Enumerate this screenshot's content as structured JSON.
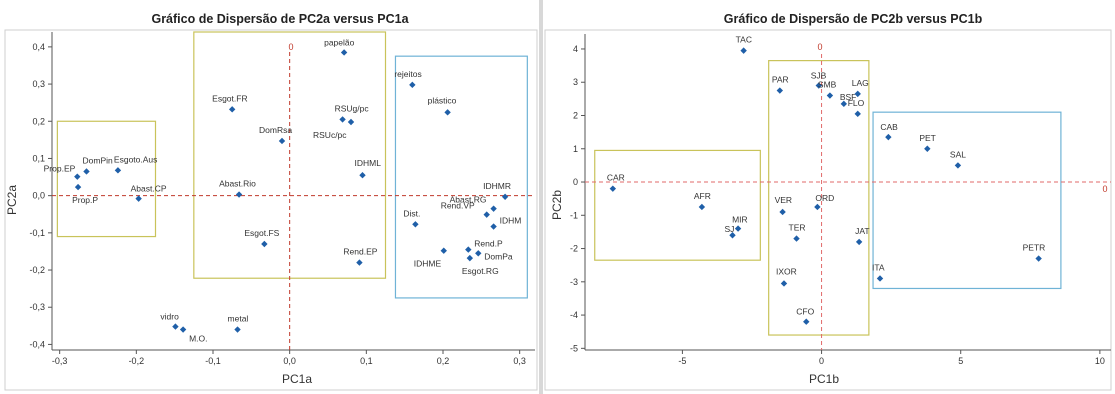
{
  "chart_data": [
    {
      "type": "scatter",
      "title": "Gráfico de Dispersão de PC2a versus PC1a",
      "xlabel": "PC1a",
      "ylabel": "PC2a",
      "xlim": [
        -0.31,
        0.32
      ],
      "ylim": [
        -0.415,
        0.44
      ],
      "xticks": [
        "-0,3",
        "-0,2",
        "-0,1",
        "0,0",
        "0,1",
        "0,2",
        "0,3"
      ],
      "xtick_values": [
        -0.3,
        -0.2,
        -0.1,
        0.0,
        0.1,
        0.2,
        0.3
      ],
      "yticks": [
        "0,4",
        "0,3",
        "0,2",
        "0,1",
        "0,0",
        "-0,1",
        "-0,2",
        "-0,3",
        "-0,4"
      ],
      "ytick_values": [
        0.4,
        0.3,
        0.2,
        0.1,
        0.0,
        -0.1,
        -0.2,
        -0.3,
        -0.4
      ],
      "zero_label": "0",
      "point_color": "#1f5fa8",
      "ref_color": "#c0392b",
      "points": [
        {
          "label": "Prop.EP",
          "x": -0.277,
          "y": 0.051
        },
        {
          "label": "DomPin",
          "x": -0.265,
          "y": 0.065
        },
        {
          "label": "Esgoto.Aus",
          "x": -0.224,
          "y": 0.068
        },
        {
          "label": "Prop.P",
          "x": -0.276,
          "y": 0.023
        },
        {
          "label": "Abast.CP",
          "x": -0.197,
          "y": -0.008
        },
        {
          "label": "Esgot.FR",
          "x": -0.075,
          "y": 0.232
        },
        {
          "label": "DomRsa",
          "x": -0.01,
          "y": 0.147
        },
        {
          "label": "Abast.Rio",
          "x": -0.066,
          "y": 0.003
        },
        {
          "label": "Esgot.FS",
          "x": -0.033,
          "y": -0.13
        },
        {
          "label": "papelão",
          "x": 0.071,
          "y": 0.385
        },
        {
          "label": "RSUg/pc",
          "x": 0.069,
          "y": 0.205
        },
        {
          "label": "RSUc/pc",
          "x": 0.08,
          "y": 0.198
        },
        {
          "label": "IDHML",
          "x": 0.095,
          "y": 0.055
        },
        {
          "label": "Rend.EP",
          "x": 0.091,
          "y": -0.18
        },
        {
          "label": "vidro",
          "x": -0.149,
          "y": -0.352
        },
        {
          "label": "M.O.",
          "x": -0.139,
          "y": -0.36
        },
        {
          "label": "metal",
          "x": -0.068,
          "y": -0.36
        },
        {
          "label": "rejeitos",
          "x": 0.16,
          "y": 0.298
        },
        {
          "label": "plástico",
          "x": 0.206,
          "y": 0.224
        },
        {
          "label": "IDHMR",
          "x": 0.281,
          "y": -0.003
        },
        {
          "label": "Abast.RG",
          "x": 0.266,
          "y": -0.035
        },
        {
          "label": "Rend.VP",
          "x": 0.257,
          "y": -0.051
        },
        {
          "label": "IDHM",
          "x": 0.266,
          "y": -0.083
        },
        {
          "label": "Dist.",
          "x": 0.164,
          "y": -0.077
        },
        {
          "label": "IDHME",
          "x": 0.201,
          "y": -0.148
        },
        {
          "label": "Rend.P",
          "x": 0.233,
          "y": -0.145
        },
        {
          "label": "DomPa",
          "x": 0.246,
          "y": -0.155
        },
        {
          "label": "Esgot.RG",
          "x": 0.235,
          "y": -0.168
        }
      ],
      "boxes": [
        {
          "x0": -0.303,
          "x1": -0.175,
          "y0": -0.11,
          "y1": 0.2,
          "color": "#c9c35a"
        },
        {
          "x0": -0.125,
          "x1": 0.125,
          "y0": -0.222,
          "y1": 0.44,
          "color": "#c9c35a"
        },
        {
          "x0": 0.138,
          "x1": 0.31,
          "y0": -0.275,
          "y1": 0.375,
          "color": "#6fb3d6"
        }
      ]
    },
    {
      "type": "scatter",
      "title": "Gráfico de Dispersão de PC2b versus PC1b",
      "xlabel": "PC1b",
      "ylabel": "PC2b",
      "xlim": [
        -8.5,
        10.4
      ],
      "ylim": [
        -5.05,
        4.45
      ],
      "xticks": [
        "-5",
        "0",
        "5",
        "10"
      ],
      "xtick_values": [
        -5,
        0,
        5,
        10
      ],
      "yticks": [
        "4",
        "3",
        "2",
        "1",
        "0",
        "-1",
        "-2",
        "-3",
        "-4",
        "-5"
      ],
      "ytick_values": [
        4,
        3,
        2,
        1,
        0,
        -1,
        -2,
        -3,
        -4,
        -5
      ],
      "zero_label": "0",
      "point_color": "#1f5fa8",
      "ref_color": "#e06a6a",
      "points": [
        {
          "label": "TAC",
          "x": -2.8,
          "y": 3.95
        },
        {
          "label": "PAR",
          "x": -1.5,
          "y": 2.75
        },
        {
          "label": "SJB",
          "x": -0.1,
          "y": 2.9
        },
        {
          "label": "SMB",
          "x": 0.3,
          "y": 2.6
        },
        {
          "label": "BSF",
          "x": 0.8,
          "y": 2.35
        },
        {
          "label": "LAG",
          "x": 1.3,
          "y": 2.65
        },
        {
          "label": "FLO",
          "x": 1.3,
          "y": 2.05
        },
        {
          "label": "CAB",
          "x": 2.4,
          "y": 1.35
        },
        {
          "label": "PET",
          "x": 3.8,
          "y": 1.0
        },
        {
          "label": "SAL",
          "x": 4.9,
          "y": 0.5
        },
        {
          "label": "CAR",
          "x": -7.5,
          "y": -0.2
        },
        {
          "label": "AFR",
          "x": -4.3,
          "y": -0.75
        },
        {
          "label": "MIR",
          "x": -3.0,
          "y": -1.4
        },
        {
          "label": "SJ",
          "x": -3.2,
          "y": -1.6
        },
        {
          "label": "VER",
          "x": -1.4,
          "y": -0.9
        },
        {
          "label": "ORD",
          "x": -0.15,
          "y": -0.75
        },
        {
          "label": "TER",
          "x": -0.9,
          "y": -1.7
        },
        {
          "label": "JAT",
          "x": 1.35,
          "y": -1.8
        },
        {
          "label": "IXOR",
          "x": -1.35,
          "y": -3.05
        },
        {
          "label": "CFO",
          "x": -0.55,
          "y": -4.2
        },
        {
          "label": "ITA",
          "x": 2.1,
          "y": -2.9
        },
        {
          "label": "PETR",
          "x": 7.8,
          "y": -2.3
        }
      ],
      "boxes": [
        {
          "x0": -8.15,
          "x1": -2.2,
          "y0": -2.35,
          "y1": 0.95,
          "color": "#c9c35a"
        },
        {
          "x0": -1.9,
          "x1": 1.7,
          "y0": -4.6,
          "y1": 3.65,
          "color": "#c9c35a"
        },
        {
          "x0": 1.85,
          "x1": 8.6,
          "y0": -3.2,
          "y1": 2.1,
          "color": "#6fb3d6"
        }
      ]
    }
  ]
}
